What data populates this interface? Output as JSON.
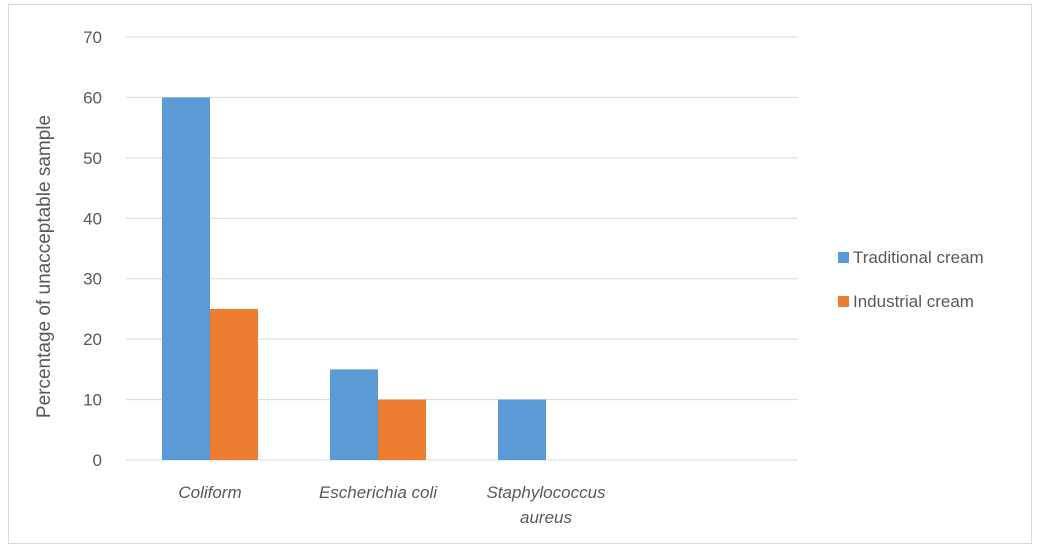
{
  "chart_data": {
    "type": "bar",
    "categories": [
      "Coliform",
      "Escherichia coli",
      "Staphylococcus aureus"
    ],
    "category_label_lines": [
      [
        "Coliform"
      ],
      [
        "Escherichia coli"
      ],
      [
        "Staphylococcus",
        "aureus"
      ]
    ],
    "series": [
      {
        "name": "Traditional cream",
        "values": [
          60,
          15,
          10
        ],
        "color": "#5b9bd5"
      },
      {
        "name": "Industrial cream",
        "values": [
          25,
          10,
          0
        ],
        "color": "#ed7d31"
      }
    ],
    "title": "",
    "xlabel": "",
    "ylabel": "Percentage of unacceptable sample",
    "ylim": [
      0,
      70
    ],
    "yticks": [
      0,
      10,
      20,
      30,
      40,
      50,
      60,
      70
    ],
    "grid": true,
    "legend_position": "right"
  }
}
